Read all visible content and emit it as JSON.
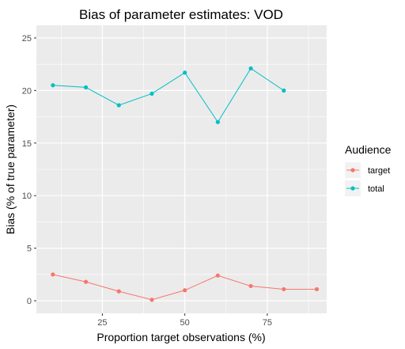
{
  "chart_data": {
    "type": "line",
    "title": "Bias of parameter estimates: VOD",
    "xlabel": "Proportion target observations (%)",
    "ylabel": "Bias (% of true parameter)",
    "xlim": [
      5,
      93
    ],
    "ylim": [
      -1.2,
      26.2
    ],
    "x_ticks": [
      25,
      50,
      75
    ],
    "y_ticks": [
      0,
      5,
      10,
      15,
      20,
      25
    ],
    "grid": true,
    "legend": {
      "title": "Audience",
      "position": "right"
    },
    "series": [
      {
        "name": "target",
        "color": "#F8766D",
        "x": [
          10,
          20,
          30,
          40,
          50,
          60,
          70,
          80,
          90
        ],
        "values": [
          2.5,
          1.8,
          0.9,
          0.1,
          1.0,
          2.4,
          1.4,
          1.1,
          1.1
        ]
      },
      {
        "name": "total",
        "color": "#00BFC4",
        "x": [
          10,
          20,
          30,
          40,
          50,
          60,
          70,
          80
        ],
        "values": [
          20.5,
          20.3,
          18.6,
          19.7,
          21.7,
          17.0,
          22.1,
          20.0
        ]
      }
    ]
  }
}
